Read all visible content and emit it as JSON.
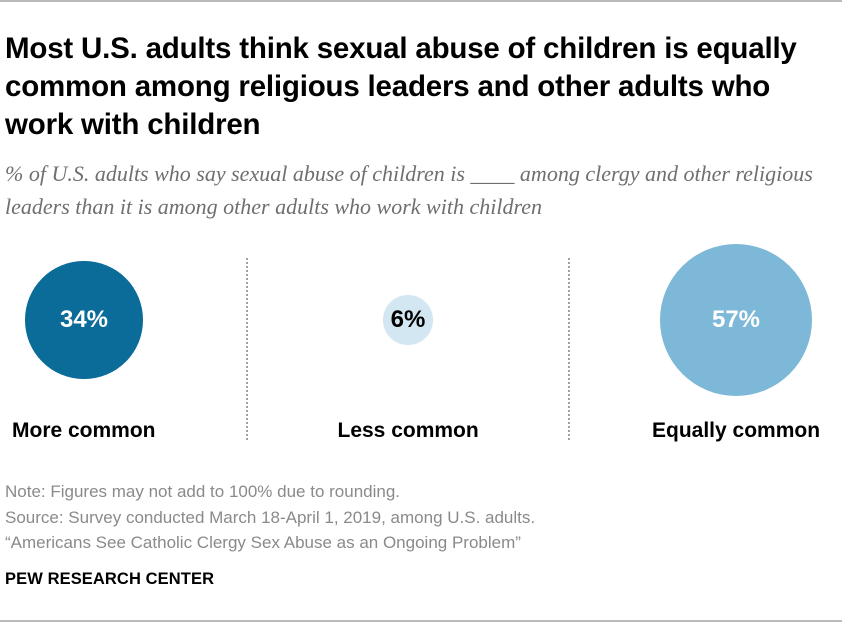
{
  "title": "Most U.S. adults think sexual abuse of children is equally common among religious leaders and other adults who work with children",
  "subtitle": "% of U.S. adults who say sexual abuse of children is ____ among clergy and other religious leaders than it is among other adults who work with children",
  "chart_data": {
    "type": "bubble",
    "categories": [
      "More common",
      "Less common",
      "Equally common"
    ],
    "values": [
      34,
      6,
      57
    ],
    "value_labels": [
      "34%",
      "6%",
      "57%"
    ],
    "colors": [
      "#0b6b99",
      "#d3e7f2",
      "#7db8d8"
    ],
    "label_colors": [
      "#ffffff",
      "#000000",
      "#ffffff"
    ]
  },
  "notes": {
    "note": "Note: Figures may not add to 100% due to rounding.",
    "source": "Source: Survey conducted March 18-April 1, 2019, among U.S. adults.",
    "report": "“Americans See Catholic Clergy Sex Abuse as an Ongoing Problem”"
  },
  "brand": "PEW RESEARCH CENTER"
}
